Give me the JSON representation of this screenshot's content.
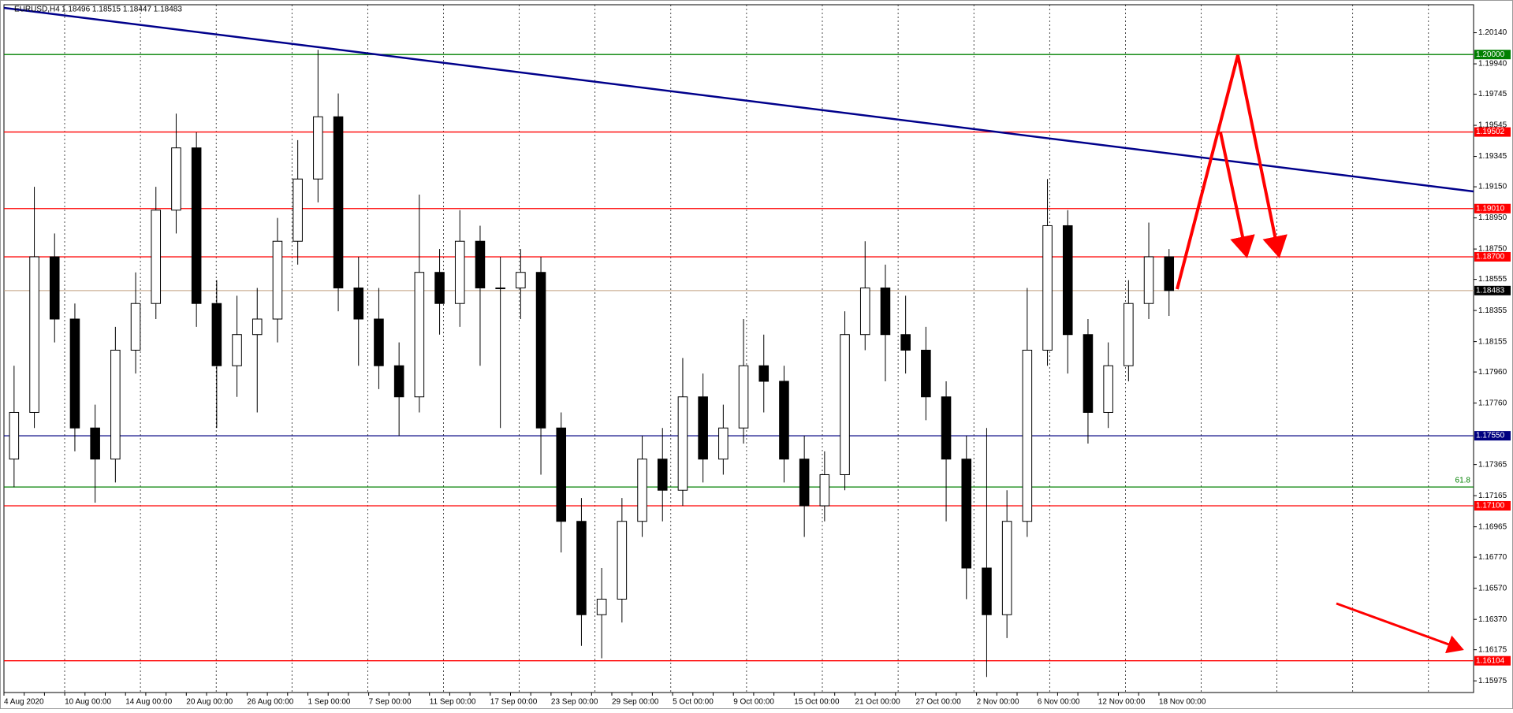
{
  "chart_data": {
    "type": "candlestick",
    "title": "EURUSD,H4",
    "ohlc_header": "1.18496 1.18515 1.18447 1.18483",
    "categories": [
      "4 Aug 2020",
      null,
      null,
      "10 Aug 00:00",
      null,
      null,
      "14 Aug 00:00",
      null,
      null,
      "20 Aug 00:00",
      null,
      null,
      "26 Aug 00:00",
      null,
      null,
      "1 Sep 00:00",
      null,
      null,
      "7 Sep 00:00",
      null,
      null,
      "11 Sep 00:00",
      null,
      null,
      "17 Sep 00:00",
      null,
      null,
      "23 Sep 00:00",
      null,
      null,
      "29 Sep 00:00",
      null,
      null,
      "5 Oct 00:00",
      null,
      null,
      "9 Oct 00:00",
      null,
      null,
      "15 Oct 00:00",
      null,
      null,
      "21 Oct 00:00",
      null,
      null,
      "27 Oct 00:00",
      null,
      null,
      "2 Nov 00:00",
      null,
      null,
      "6 Nov 00:00",
      null,
      null,
      "12 Nov 00:00",
      null,
      null,
      "18 Nov 00:00"
    ],
    "open": [
      1.174,
      1.177,
      1.187,
      1.183,
      1.176,
      1.174,
      1.181,
      1.184,
      1.19,
      1.194,
      1.184,
      1.18,
      1.182,
      1.183,
      1.188,
      1.192,
      1.196,
      1.185,
      1.183,
      1.18,
      1.178,
      1.186,
      1.184,
      1.188,
      1.185,
      1.185,
      1.186,
      1.176,
      1.17,
      1.164,
      1.165,
      1.17,
      1.174,
      1.172,
      1.178,
      1.174,
      1.176,
      1.18,
      1.179,
      1.174,
      1.171,
      1.173,
      1.182,
      1.185,
      1.182,
      1.181,
      1.178,
      1.174,
      1.167,
      1.164,
      1.17,
      1.181,
      1.189,
      1.182,
      1.177,
      1.18,
      1.184,
      1.187
    ],
    "high": [
      1.18,
      1.1915,
      1.1885,
      1.184,
      1.1775,
      1.1825,
      1.186,
      1.1915,
      1.1962,
      1.195,
      1.1855,
      1.1845,
      1.185,
      1.1895,
      1.1945,
      1.2003,
      1.1975,
      1.187,
      1.185,
      1.1815,
      1.191,
      1.1875,
      1.19,
      1.189,
      1.187,
      1.1875,
      1.187,
      1.177,
      1.1715,
      1.167,
      1.1715,
      1.1755,
      1.176,
      1.1805,
      1.1795,
      1.1775,
      1.183,
      1.182,
      1.18,
      1.1755,
      1.1745,
      1.1835,
      1.188,
      1.1865,
      1.1845,
      1.1825,
      1.179,
      1.1755,
      1.176,
      1.172,
      1.185,
      1.192,
      1.19,
      1.183,
      1.1815,
      1.1855,
      1.1892,
      1.1875
    ],
    "low": [
      1.1722,
      1.176,
      1.1815,
      1.1745,
      1.1712,
      1.1725,
      1.1795,
      1.183,
      1.1885,
      1.1825,
      1.176,
      1.178,
      1.177,
      1.1815,
      1.1865,
      1.1905,
      1.1835,
      1.18,
      1.1785,
      1.1755,
      1.177,
      1.182,
      1.1825,
      1.18,
      1.176,
      1.183,
      1.173,
      1.168,
      1.162,
      1.1612,
      1.1635,
      1.169,
      1.17,
      1.171,
      1.1725,
      1.173,
      1.175,
      1.177,
      1.1725,
      1.169,
      1.17,
      1.172,
      1.181,
      1.179,
      1.1795,
      1.1765,
      1.17,
      1.165,
      1.16,
      1.1625,
      1.169,
      1.18,
      1.1795,
      1.175,
      1.176,
      1.179,
      1.183,
      1.1832
    ],
    "close": [
      1.177,
      1.187,
      1.183,
      1.176,
      1.174,
      1.181,
      1.184,
      1.19,
      1.194,
      1.184,
      1.18,
      1.182,
      1.183,
      1.188,
      1.192,
      1.196,
      1.185,
      1.183,
      1.18,
      1.178,
      1.186,
      1.184,
      1.188,
      1.185,
      1.185,
      1.186,
      1.176,
      1.17,
      1.164,
      1.165,
      1.17,
      1.174,
      1.172,
      1.178,
      1.174,
      1.176,
      1.18,
      1.179,
      1.174,
      1.171,
      1.173,
      1.182,
      1.185,
      1.182,
      1.181,
      1.178,
      1.174,
      1.167,
      1.164,
      1.17,
      1.181,
      1.189,
      1.182,
      1.177,
      1.18,
      1.184,
      1.187,
      1.18483
    ],
    "color": "#000000",
    "ylim": [
      1.159,
      1.2032
    ],
    "yticks": [
      {
        "value": 1.2014,
        "label": "1.20140"
      },
      {
        "value": 1.1994,
        "label": "1.19940"
      },
      1.19745,
      1.19545,
      1.19345,
      {
        "value": 1.1915,
        "label": "1.19150"
      },
      {
        "value": 1.1895,
        "label": "1.18950"
      },
      {
        "value": 1.1875,
        "label": "1.18750"
      },
      1.18555,
      1.18355,
      1.18155,
      {
        "value": 1.1796,
        "label": "1.17960"
      },
      {
        "value": 1.1776,
        "label": "1.17760"
      },
      1.17365,
      1.17165,
      1.16965,
      {
        "value": 1.1677,
        "label": "1.16770"
      },
      {
        "value": 1.1657,
        "label": "1.16570"
      },
      {
        "value": 1.1637,
        "label": "1.16370"
      },
      1.16175,
      1.15975
    ],
    "levels": [
      {
        "value": 1.2,
        "label": "1.20000",
        "color": "#008000"
      },
      {
        "value": 1.19502,
        "label": "1.19502",
        "color": "#ff0000"
      },
      {
        "value": 1.1901,
        "label": "1.19010",
        "color": "#ff0000"
      },
      {
        "value": 1.187,
        "label": "1.18700",
        "color": "#ff0000"
      },
      {
        "value": 1.1755,
        "label": "1.17550",
        "color": "#000080"
      },
      {
        "value": 1.171,
        "label": "1.17100",
        "color": "#ff0000"
      },
      {
        "value": 1.16104,
        "label": "1.16104",
        "color": "#ff0000"
      }
    ],
    "current_price": {
      "value": 1.18483,
      "label": "1.18483",
      "color": "#000000"
    },
    "fib_level": {
      "value": 1.17221,
      "label": "61.8",
      "color": "#008000"
    },
    "trendline": {
      "color": "#00008b",
      "values": [
        1.203,
        1.1912
      ]
    }
  }
}
